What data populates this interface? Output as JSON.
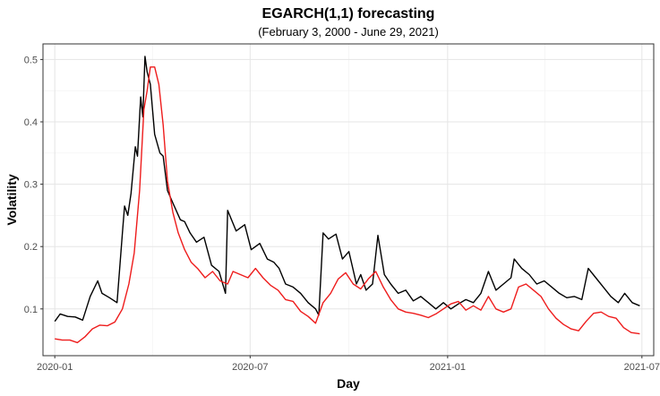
{
  "chart_data": {
    "type": "line",
    "title": "EGARCH(1,1) forecasting",
    "subtitle": "(February 3, 2000 - June 29, 2021)",
    "xlabel": "Day",
    "ylabel": "Volatility",
    "xlim": [
      "2019-12-21",
      "2021-07-12"
    ],
    "ylim": [
      0.025,
      0.525
    ],
    "x_ticks": [
      {
        "value": "2020-01-01",
        "label": "2020-01"
      },
      {
        "value": "2020-07-01",
        "label": "2020-07"
      },
      {
        "value": "2021-01-01",
        "label": "2021-01"
      },
      {
        "value": "2021-07-01",
        "label": "2021-07"
      }
    ],
    "y_ticks": [
      0.1,
      0.2,
      0.3,
      0.4,
      0.5
    ],
    "grid": true,
    "legend": "none",
    "series": [
      {
        "color": "#000000",
        "points": [
          [
            "2020-01-01",
            0.08
          ],
          [
            "2020-01-06",
            0.092
          ],
          [
            "2020-01-13",
            0.088
          ],
          [
            "2020-01-20",
            0.087
          ],
          [
            "2020-01-27",
            0.082
          ],
          [
            "2020-02-03",
            0.12
          ],
          [
            "2020-02-10",
            0.145
          ],
          [
            "2020-02-14",
            0.125
          ],
          [
            "2020-02-21",
            0.118
          ],
          [
            "2020-02-28",
            0.11
          ],
          [
            "2020-03-04",
            0.222
          ],
          [
            "2020-03-06",
            0.265
          ],
          [
            "2020-03-09",
            0.25
          ],
          [
            "2020-03-12",
            0.285
          ],
          [
            "2020-03-16",
            0.36
          ],
          [
            "2020-03-18",
            0.345
          ],
          [
            "2020-03-21",
            0.44
          ],
          [
            "2020-03-23",
            0.408
          ],
          [
            "2020-03-25",
            0.505
          ],
          [
            "2020-03-27",
            0.48
          ],
          [
            "2020-03-30",
            0.46
          ],
          [
            "2020-04-03",
            0.38
          ],
          [
            "2020-04-08",
            0.35
          ],
          [
            "2020-04-11",
            0.345
          ],
          [
            "2020-04-15",
            0.29
          ],
          [
            "2020-04-20",
            0.27
          ],
          [
            "2020-04-27",
            0.243
          ],
          [
            "2020-05-01",
            0.24
          ],
          [
            "2020-05-06",
            0.222
          ],
          [
            "2020-05-12",
            0.207
          ],
          [
            "2020-05-19",
            0.215
          ],
          [
            "2020-05-26",
            0.17
          ],
          [
            "2020-06-02",
            0.16
          ],
          [
            "2020-06-08",
            0.125
          ],
          [
            "2020-06-10",
            0.258
          ],
          [
            "2020-06-18",
            0.225
          ],
          [
            "2020-06-26",
            0.235
          ],
          [
            "2020-07-02",
            0.195
          ],
          [
            "2020-07-10",
            0.205
          ],
          [
            "2020-07-17",
            0.18
          ],
          [
            "2020-07-23",
            0.175
          ],
          [
            "2020-07-28",
            0.165
          ],
          [
            "2020-08-03",
            0.14
          ],
          [
            "2020-08-10",
            0.135
          ],
          [
            "2020-08-17",
            0.125
          ],
          [
            "2020-08-24",
            0.11
          ],
          [
            "2020-08-31",
            0.1
          ],
          [
            "2020-09-03",
            0.09
          ],
          [
            "2020-09-07",
            0.222
          ],
          [
            "2020-09-12",
            0.212
          ],
          [
            "2020-09-19",
            0.22
          ],
          [
            "2020-09-25",
            0.18
          ],
          [
            "2020-10-01",
            0.192
          ],
          [
            "2020-10-08",
            0.14
          ],
          [
            "2020-10-12",
            0.155
          ],
          [
            "2020-10-17",
            0.13
          ],
          [
            "2020-10-23",
            0.14
          ],
          [
            "2020-10-28",
            0.218
          ],
          [
            "2020-11-03",
            0.155
          ],
          [
            "2020-11-09",
            0.14
          ],
          [
            "2020-11-16",
            0.125
          ],
          [
            "2020-11-23",
            0.13
          ],
          [
            "2020-11-30",
            0.113
          ],
          [
            "2020-12-07",
            0.12
          ],
          [
            "2020-12-14",
            0.11
          ],
          [
            "2020-12-21",
            0.1
          ],
          [
            "2020-12-28",
            0.11
          ],
          [
            "2021-01-04",
            0.1
          ],
          [
            "2021-01-11",
            0.108
          ],
          [
            "2021-01-18",
            0.115
          ],
          [
            "2021-01-25",
            0.11
          ],
          [
            "2021-02-01",
            0.125
          ],
          [
            "2021-02-08",
            0.16
          ],
          [
            "2021-02-15",
            0.13
          ],
          [
            "2021-02-22",
            0.14
          ],
          [
            "2021-03-01",
            0.15
          ],
          [
            "2021-03-04",
            0.18
          ],
          [
            "2021-03-11",
            0.165
          ],
          [
            "2021-03-18",
            0.155
          ],
          [
            "2021-03-25",
            0.14
          ],
          [
            "2021-04-01",
            0.145
          ],
          [
            "2021-04-08",
            0.135
          ],
          [
            "2021-04-15",
            0.125
          ],
          [
            "2021-04-22",
            0.118
          ],
          [
            "2021-04-29",
            0.12
          ],
          [
            "2021-05-06",
            0.115
          ],
          [
            "2021-05-12",
            0.165
          ],
          [
            "2021-05-19",
            0.15
          ],
          [
            "2021-05-26",
            0.135
          ],
          [
            "2021-06-02",
            0.12
          ],
          [
            "2021-06-09",
            0.11
          ],
          [
            "2021-06-15",
            0.125
          ],
          [
            "2021-06-22",
            0.11
          ],
          [
            "2021-06-29",
            0.105
          ]
        ]
      },
      {
        "color": "#ee1c1c",
        "points": [
          [
            "2020-01-01",
            0.052
          ],
          [
            "2020-01-08",
            0.05
          ],
          [
            "2020-01-15",
            0.05
          ],
          [
            "2020-01-22",
            0.046
          ],
          [
            "2020-01-29",
            0.055
          ],
          [
            "2020-02-05",
            0.068
          ],
          [
            "2020-02-12",
            0.074
          ],
          [
            "2020-02-19",
            0.073
          ],
          [
            "2020-02-26",
            0.079
          ],
          [
            "2020-03-04",
            0.1
          ],
          [
            "2020-03-10",
            0.14
          ],
          [
            "2020-03-15",
            0.19
          ],
          [
            "2020-03-20",
            0.29
          ],
          [
            "2020-03-24",
            0.42
          ],
          [
            "2020-03-27",
            0.45
          ],
          [
            "2020-03-30",
            0.488
          ],
          [
            "2020-04-03",
            0.488
          ],
          [
            "2020-04-07",
            0.46
          ],
          [
            "2020-04-11",
            0.395
          ],
          [
            "2020-04-15",
            0.305
          ],
          [
            "2020-04-20",
            0.255
          ],
          [
            "2020-04-25",
            0.222
          ],
          [
            "2020-05-01",
            0.195
          ],
          [
            "2020-05-07",
            0.175
          ],
          [
            "2020-05-13",
            0.165
          ],
          [
            "2020-05-20",
            0.15
          ],
          [
            "2020-05-27",
            0.16
          ],
          [
            "2020-06-03",
            0.145
          ],
          [
            "2020-06-10",
            0.14
          ],
          [
            "2020-06-15",
            0.16
          ],
          [
            "2020-06-22",
            0.155
          ],
          [
            "2020-06-29",
            0.15
          ],
          [
            "2020-07-06",
            0.165
          ],
          [
            "2020-07-13",
            0.15
          ],
          [
            "2020-07-20",
            0.138
          ],
          [
            "2020-07-27",
            0.13
          ],
          [
            "2020-08-03",
            0.115
          ],
          [
            "2020-08-10",
            0.112
          ],
          [
            "2020-08-17",
            0.096
          ],
          [
            "2020-08-24",
            0.088
          ],
          [
            "2020-08-31",
            0.077
          ],
          [
            "2020-09-07",
            0.11
          ],
          [
            "2020-09-14",
            0.125
          ],
          [
            "2020-09-21",
            0.148
          ],
          [
            "2020-09-28",
            0.158
          ],
          [
            "2020-10-05",
            0.14
          ],
          [
            "2020-10-12",
            0.132
          ],
          [
            "2020-10-19",
            0.148
          ],
          [
            "2020-10-26",
            0.16
          ],
          [
            "2020-11-02",
            0.135
          ],
          [
            "2020-11-09",
            0.115
          ],
          [
            "2020-11-16",
            0.1
          ],
          [
            "2020-11-23",
            0.095
          ],
          [
            "2020-11-30",
            0.093
          ],
          [
            "2020-12-07",
            0.09
          ],
          [
            "2020-12-14",
            0.086
          ],
          [
            "2020-12-21",
            0.092
          ],
          [
            "2020-12-28",
            0.1
          ],
          [
            "2021-01-04",
            0.108
          ],
          [
            "2021-01-11",
            0.112
          ],
          [
            "2021-01-18",
            0.098
          ],
          [
            "2021-01-25",
            0.105
          ],
          [
            "2021-02-01",
            0.098
          ],
          [
            "2021-02-08",
            0.12
          ],
          [
            "2021-02-15",
            0.1
          ],
          [
            "2021-02-22",
            0.095
          ],
          [
            "2021-03-01",
            0.1
          ],
          [
            "2021-03-08",
            0.135
          ],
          [
            "2021-03-15",
            0.14
          ],
          [
            "2021-03-22",
            0.13
          ],
          [
            "2021-03-29",
            0.12
          ],
          [
            "2021-04-05",
            0.1
          ],
          [
            "2021-04-12",
            0.085
          ],
          [
            "2021-04-19",
            0.075
          ],
          [
            "2021-04-26",
            0.068
          ],
          [
            "2021-05-03",
            0.065
          ],
          [
            "2021-05-10",
            0.08
          ],
          [
            "2021-05-17",
            0.093
          ],
          [
            "2021-05-24",
            0.095
          ],
          [
            "2021-05-31",
            0.088
          ],
          [
            "2021-06-07",
            0.085
          ],
          [
            "2021-06-14",
            0.07
          ],
          [
            "2021-06-21",
            0.062
          ],
          [
            "2021-06-29",
            0.06
          ]
        ]
      }
    ]
  }
}
